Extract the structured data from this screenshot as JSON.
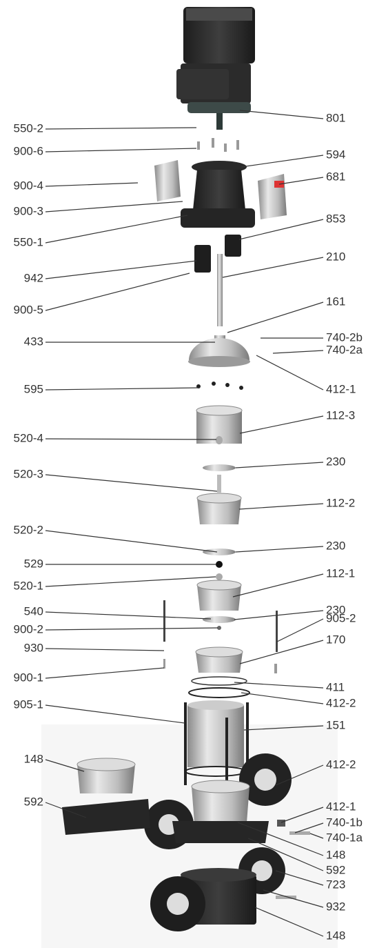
{
  "parts": {
    "left": [
      "550-2",
      "900-6",
      "900-4",
      "900-3",
      "550-1",
      "942",
      "900-5",
      "433",
      "595",
      "520-4",
      "520-3",
      "520-2",
      "529",
      "520-1",
      "540",
      "900-2",
      "930",
      "900-1",
      "905-1",
      "148",
      "592"
    ],
    "right": [
      "801",
      "594",
      "681",
      "853",
      "210",
      "161",
      "740-2b",
      "740-2a",
      "412-1",
      "112-3",
      "230",
      "112-2",
      "230",
      "112-1",
      "230",
      "905-2",
      "170",
      "411",
      "412-2",
      "151",
      "412-2",
      "412-1",
      "740-1b",
      "740-1a",
      "148",
      "592",
      "723",
      "932",
      "148"
    ]
  }
}
